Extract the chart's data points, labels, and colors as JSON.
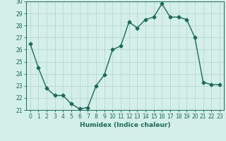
{
  "title": "",
  "xlabel": "Humidex (Indice chaleur)",
  "ylabel": "",
  "x": [
    0,
    1,
    2,
    3,
    4,
    5,
    6,
    7,
    8,
    9,
    10,
    11,
    12,
    13,
    14,
    15,
    16,
    17,
    18,
    19,
    20,
    21,
    22,
    23
  ],
  "y": [
    26.5,
    24.5,
    22.8,
    22.2,
    22.2,
    21.5,
    21.1,
    21.2,
    23.0,
    23.9,
    26.0,
    26.3,
    28.3,
    27.8,
    28.5,
    28.7,
    29.8,
    28.7,
    28.7,
    28.5,
    27.0,
    23.3,
    23.1,
    23.1
  ],
  "line_color": "#1a6b5a",
  "marker": "D",
  "marker_size": 2.5,
  "line_width": 1.0,
  "ylim": [
    21,
    30
  ],
  "xlim": [
    -0.5,
    23.5
  ],
  "yticks": [
    21,
    22,
    23,
    24,
    25,
    26,
    27,
    28,
    29,
    30
  ],
  "xticks": [
    0,
    1,
    2,
    3,
    4,
    5,
    6,
    7,
    8,
    9,
    10,
    11,
    12,
    13,
    14,
    15,
    16,
    17,
    18,
    19,
    20,
    21,
    22,
    23
  ],
  "bg_color": "#d4eee8",
  "grid_color": "#b8d8d0",
  "axis_color": "#1a6b5a",
  "tick_label_color": "#1a6b5a",
  "xlabel_color": "#1a6b5a",
  "tick_fontsize": 5.5,
  "xlabel_fontsize": 6.5
}
